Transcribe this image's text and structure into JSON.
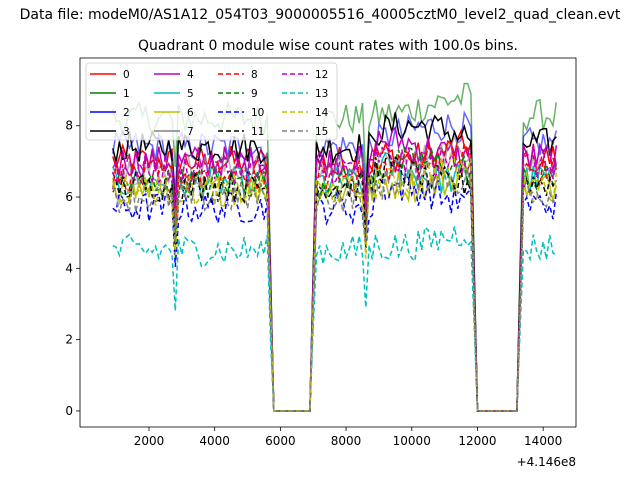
{
  "figure": {
    "suptitle": "Data file: modeM0/AS1A12_054T03_9000005516_40005cztM0_level2_quad_clean.evt",
    "background": "#ffffff"
  },
  "chart_data": {
    "type": "line",
    "title": "Quadrant 0 module wise count rates with 100.0s bins.",
    "xlabel": "",
    "ylabel": "",
    "x_offset_label": "+4.146e8",
    "xlim": [
      -100,
      15000
    ],
    "ylim": [
      -0.45,
      9.9
    ],
    "x_ticks": [
      2000,
      4000,
      6000,
      8000,
      10000,
      12000,
      14000
    ],
    "y_ticks": [
      0,
      2,
      4,
      6,
      8
    ],
    "grid": false,
    "legend": {
      "position": "top-left",
      "columns": 4
    },
    "gaps": [
      [
        5750,
        6950
      ],
      [
        11950,
        13250
      ]
    ],
    "x_start": 900,
    "x_end": 14400,
    "series": [
      {
        "name": "0",
        "color": "#ff0000",
        "style": "solid",
        "base": 7.0
      },
      {
        "name": "1",
        "color": "#008000",
        "style": "solid",
        "base": 8.2
      },
      {
        "name": "2",
        "color": "#0000ff",
        "style": "solid",
        "base": 7.4
      },
      {
        "name": "3",
        "color": "#000000",
        "style": "solid",
        "base": 7.4
      },
      {
        "name": "4",
        "color": "#bf00bf",
        "style": "solid",
        "base": 7.0
      },
      {
        "name": "5",
        "color": "#00bfbf",
        "style": "solid",
        "base": 6.4
      },
      {
        "name": "6",
        "color": "#bfbf00",
        "style": "solid",
        "base": 6.2
      },
      {
        "name": "7",
        "color": "#808080",
        "style": "solid",
        "base": 6.8
      },
      {
        "name": "8",
        "color": "#ff0000",
        "style": "dashed",
        "base": 6.6
      },
      {
        "name": "9",
        "color": "#008000",
        "style": "dashed",
        "base": 6.4
      },
      {
        "name": "10",
        "color": "#0000ff",
        "style": "dashed",
        "base": 5.7
      },
      {
        "name": "11",
        "color": "#000000",
        "style": "dashed",
        "base": 6.3
      },
      {
        "name": "12",
        "color": "#bf00bf",
        "style": "dashed",
        "base": 6.8
      },
      {
        "name": "13",
        "color": "#00bfbf",
        "style": "dashed",
        "base": 4.5
      },
      {
        "name": "14",
        "color": "#bfbf00",
        "style": "dashed",
        "base": 6.2
      },
      {
        "name": "15",
        "color": "#808080",
        "style": "dashed",
        "base": 6.0
      }
    ]
  }
}
